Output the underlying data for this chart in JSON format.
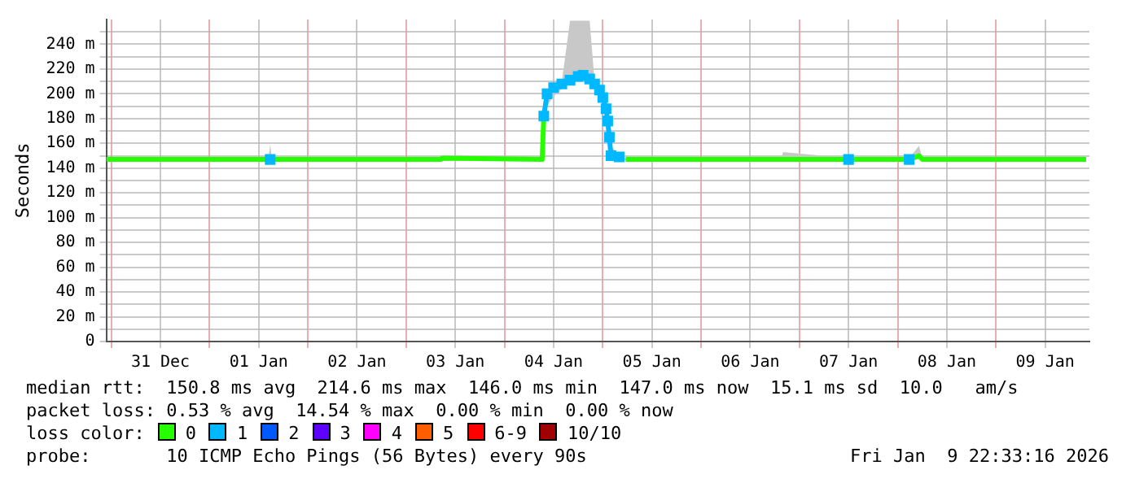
{
  "chart_data": {
    "type": "line",
    "ylabel": "Seconds",
    "x": [
      "2025-12-30T22:48",
      "2026-01-01T14:24",
      "2026-01-01T14:48",
      "2026-01-01T15:12",
      "2026-01-03T08:24",
      "2026-01-03T08:48",
      "2026-01-04T09:12",
      "2026-01-04T09:36",
      "2026-01-04T10:24",
      "2026-01-04T12:00",
      "2026-01-04T14:00",
      "2026-01-04T16:00",
      "2026-01-04T18:00",
      "2026-01-04T19:12",
      "2026-01-04T20:48",
      "2026-01-04T22:00",
      "2026-01-04T23:12",
      "2026-01-05T00:00",
      "2026-01-05T00:48",
      "2026-01-05T01:12",
      "2026-01-05T01:36",
      "2026-01-05T02:00",
      "2026-01-05T04:00",
      "2026-01-05T05:36",
      "2026-01-06T19:36",
      "2026-01-06T20:00",
      "2026-01-07T12:00",
      "2026-01-07T20:00",
      "2026-01-08T02:48",
      "2026-01-08T05:12",
      "2026-01-08T06:00",
      "2026-01-09T22:00"
    ],
    "series": [
      {
        "name": "0",
        "color": "#26ff00",
        "values": [
          147,
          147,
          147,
          147,
          147,
          148,
          147,
          182,
          null,
          null,
          null,
          null,
          null,
          null,
          null,
          null,
          null,
          null,
          null,
          null,
          null,
          null,
          null,
          147,
          147,
          147,
          147,
          147,
          147,
          150,
          147,
          147
        ],
        "lower": [
          146,
          146,
          146,
          146,
          146,
          146,
          146,
          180,
          190,
          198,
          204,
          208,
          212,
          213,
          209,
          204,
          198,
          190,
          178,
          170,
          158,
          147,
          148,
          146,
          146,
          146,
          146,
          146,
          146,
          147,
          146,
          146
        ],
        "upper": [
          148,
          148,
          159,
          148,
          148,
          150,
          148,
          185,
          203,
          208,
          210,
          259,
          259,
          259,
          259,
          210,
          206,
          200,
          192,
          185,
          172,
          158,
          150,
          148,
          148,
          153,
          148,
          148,
          148,
          158,
          148,
          148
        ]
      },
      {
        "name": "1",
        "color": "#00b8ff",
        "marker": "square",
        "values": [
          null,
          null,
          147,
          null,
          null,
          null,
          null,
          182,
          200,
          205,
          208,
          211,
          214,
          215,
          212,
          208,
          203,
          197,
          188,
          178,
          165,
          150,
          149,
          null,
          null,
          null,
          147,
          null,
          147,
          null,
          null,
          null
        ]
      },
      {
        "name": "2",
        "color": "#0059ff",
        "values": [
          null,
          null,
          null,
          null,
          null,
          null,
          null,
          null,
          null,
          null,
          null,
          null,
          null,
          null,
          null,
          null,
          null,
          null,
          null,
          null,
          null,
          null,
          null,
          null,
          null,
          null,
          null,
          null,
          null,
          null,
          null,
          null
        ]
      },
      {
        "name": "3",
        "color": "#5e00ff",
        "values": [
          null,
          null,
          null,
          null,
          null,
          null,
          null,
          null,
          null,
          null,
          null,
          null,
          null,
          null,
          null,
          null,
          null,
          null,
          null,
          null,
          null,
          null,
          null,
          null,
          null,
          null,
          null,
          null,
          null,
          null,
          null,
          null
        ]
      },
      {
        "name": "4",
        "color": "#ff00ff",
        "values": [
          null,
          null,
          null,
          null,
          null,
          null,
          null,
          null,
          null,
          null,
          null,
          null,
          null,
          null,
          null,
          null,
          null,
          null,
          null,
          null,
          null,
          null,
          null,
          null,
          null,
          null,
          null,
          null,
          null,
          null,
          null,
          null
        ]
      },
      {
        "name": "5",
        "color": "#ff5e00",
        "values": [
          null,
          null,
          null,
          null,
          null,
          null,
          null,
          null,
          null,
          null,
          null,
          null,
          null,
          null,
          null,
          null,
          null,
          null,
          null,
          null,
          null,
          null,
          null,
          null,
          null,
          null,
          null,
          null,
          null,
          null,
          null,
          null
        ]
      },
      {
        "name": "6-9",
        "color": "#ff0000",
        "values": [
          null,
          null,
          null,
          null,
          null,
          null,
          null,
          null,
          null,
          null,
          null,
          null,
          null,
          null,
          null,
          null,
          null,
          null,
          null,
          null,
          null,
          null,
          null,
          null,
          null,
          null,
          null,
          null,
          null,
          null,
          null,
          null
        ]
      },
      {
        "name": "10/10",
        "color": "#a10000",
        "values": [
          null,
          null,
          null,
          null,
          null,
          null,
          null,
          null,
          null,
          null,
          null,
          null,
          null,
          null,
          null,
          null,
          null,
          null,
          null,
          null,
          null,
          null,
          null,
          null,
          null,
          null,
          null,
          null,
          null,
          null,
          null,
          null
        ]
      }
    ],
    "xlim": [
      "2025-12-30T22:48",
      "2026-01-09T22:48"
    ],
    "xticks": [
      {
        "value": "2025-12-31T00:00",
        "label": null
      },
      {
        "value": "2025-12-31T12:00",
        "label": "31 Dec"
      },
      {
        "value": "2026-01-01T00:00",
        "label": null
      },
      {
        "value": "2026-01-01T12:00",
        "label": "01 Jan"
      },
      {
        "value": "2026-01-02T00:00",
        "label": null
      },
      {
        "value": "2026-01-02T12:00",
        "label": "02 Jan"
      },
      {
        "value": "2026-01-03T00:00",
        "label": null
      },
      {
        "value": "2026-01-03T12:00",
        "label": "03 Jan"
      },
      {
        "value": "2026-01-04T00:00",
        "label": null
      },
      {
        "value": "2026-01-04T12:00",
        "label": "04 Jan"
      },
      {
        "value": "2026-01-05T00:00",
        "label": null
      },
      {
        "value": "2026-01-05T12:00",
        "label": "05 Jan"
      },
      {
        "value": "2026-01-06T00:00",
        "label": null
      },
      {
        "value": "2026-01-06T12:00",
        "label": "06 Jan"
      },
      {
        "value": "2026-01-07T00:00",
        "label": null
      },
      {
        "value": "2026-01-07T12:00",
        "label": "07 Jan"
      },
      {
        "value": "2026-01-08T00:00",
        "label": null
      },
      {
        "value": "2026-01-08T12:00",
        "label": "08 Jan"
      },
      {
        "value": "2026-01-09T00:00",
        "label": null
      },
      {
        "value": "2026-01-09T12:00",
        "label": "09 Jan"
      }
    ],
    "ylim": [
      0,
      260
    ],
    "yticks": [
      0,
      {
        "value": 10,
        "label": null
      },
      {
        "value": 20,
        "label": "20 m"
      },
      {
        "value": 30,
        "label": null
      },
      {
        "value": 40,
        "label": "40 m"
      },
      {
        "value": 50,
        "label": null
      },
      {
        "value": 60,
        "label": "60 m"
      },
      {
        "value": 70,
        "label": null
      },
      {
        "value": 80,
        "label": "80 m"
      },
      {
        "value": 90,
        "label": null
      },
      {
        "value": 100,
        "label": "100 m"
      },
      {
        "value": 110,
        "label": null
      },
      {
        "value": 120,
        "label": "120 m"
      },
      {
        "value": 130,
        "label": null
      },
      {
        "value": 140,
        "label": "140 m"
      },
      {
        "value": 150,
        "label": null
      },
      {
        "value": 160,
        "label": "160 m"
      },
      {
        "value": 170,
        "label": null
      },
      {
        "value": 180,
        "label": "180 m"
      },
      {
        "value": 190,
        "label": null
      },
      {
        "value": 200,
        "label": "200 m"
      },
      {
        "value": 210,
        "label": null
      },
      {
        "value": 220,
        "label": "220 m"
      },
      {
        "value": 230,
        "label": null
      },
      {
        "value": 240,
        "label": "240 m"
      },
      {
        "value": 250,
        "label": null
      }
    ],
    "grid": true,
    "legend": "bottom",
    "legend_title": "loss color:",
    "line_style": "solid",
    "annotations": [
      "median rtt:  150.8 ms avg  214.6 ms max  146.0 ms min  147.0 ms now  15.1 ms sd  10.0   am/s",
      "packet loss: 0.53 % avg  14.54 % max  0.00 % min  0.00 % now",
      "probe:       10 ICMP Echo Pings (56 Bytes) every 90s",
      "Fri Jan  9 22:33:16 2026"
    ]
  }
}
